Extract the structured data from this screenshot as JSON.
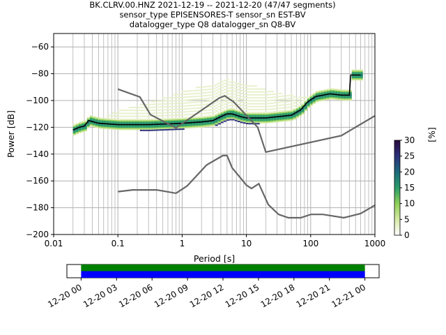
{
  "title": {
    "line1": "BK.CLRV.00.HNZ   2021-12-19 -- 2021-12-20  (47/47 segments)",
    "line2": "sensor_type EPISENSORES-T sensor_sn EST-BV",
    "line3": "datalogger_type Q8 datalogger_sn Q8-BV"
  },
  "chart_data": [
    {
      "type": "heatmap",
      "xlabel": "Period [s]",
      "ylabel": "Power [dB]",
      "xscale": "log",
      "xlim": [
        0.01,
        1000
      ],
      "ylim": [
        -200,
        -50
      ],
      "xticks": [
        0.01,
        0.1,
        1,
        10,
        100,
        1000
      ],
      "xtick_labels": [
        "0.01",
        "0.1",
        "1",
        "10",
        "100",
        "1000"
      ],
      "yticks": [
        -200,
        -180,
        -160,
        -140,
        -120,
        -100,
        -80,
        -60
      ],
      "ytick_labels": [
        "−200",
        "−180",
        "−160",
        "−140",
        "−120",
        "−100",
        "−80",
        "−60"
      ],
      "grid": true,
      "colorbar": {
        "label": "[%]",
        "range": [
          0,
          30
        ],
        "ticks": [
          0,
          5,
          10,
          15,
          20,
          25,
          30
        ],
        "tick_labels": [
          "0",
          "5",
          "10",
          "15",
          "20",
          "25",
          "30"
        ],
        "colormap": [
          "#ffffff",
          "#d6eaa6",
          "#8ecf57",
          "#2a9b6a",
          "#1c6a7c",
          "#2b2f7a",
          "#2a0b3d"
        ]
      },
      "lines": [
        {
          "role": "mode",
          "color": "#000000",
          "x": [
            0.02,
            0.025,
            0.03,
            0.035,
            0.05,
            0.1,
            0.3,
            1,
            2,
            3,
            4,
            5,
            6,
            8,
            10,
            20,
            50,
            70,
            90,
            120,
            200,
            300,
            400,
            420,
            500,
            600
          ],
          "y": [
            -122,
            -120,
            -119,
            -115,
            -117,
            -118,
            -118,
            -117,
            -116,
            -115,
            -112,
            -110,
            -110,
            -112,
            -113,
            -113,
            -111,
            -107,
            -101,
            -97,
            -95,
            -96,
            -96,
            -81,
            -81,
            -81
          ]
        },
        {
          "role": "model",
          "color": "#666666",
          "x": [
            0.1,
            0.22,
            0.32,
            0.8,
            3.8,
            4.6,
            6.3,
            15,
            20,
            300,
            1000
          ],
          "y": [
            -91.5,
            -97.4,
            -110.5,
            -120.4,
            -98.0,
            -96.5,
            -101.0,
            -120.0,
            -138.5,
            -126.2,
            -111.4
          ]
        },
        {
          "role": "model",
          "color": "#666666",
          "x": [
            0.1,
            0.17,
            0.4,
            0.8,
            1.2,
            2.4,
            4.3,
            5,
            6,
            10,
            12,
            15.6,
            21.9,
            31.6,
            45,
            70,
            101,
            154,
            328,
            600,
            1000
          ],
          "y": [
            -168,
            -166.7,
            -166.7,
            -169.2,
            -163.7,
            -148.1,
            -141.1,
            -141.1,
            -150.2,
            -163.2,
            -165.7,
            -162.1,
            -177.7,
            -185,
            -187.5,
            -187.5,
            -185,
            -185,
            -187.5,
            -184.4,
            -178.2
          ]
        }
      ],
      "series": [
        {
          "name": "",
          "x": [
            0.02,
            0.025,
            0.03,
            0.035,
            0.05,
            0.1,
            0.3,
            1,
            2,
            3,
            4,
            5,
            6,
            8,
            10,
            20,
            50,
            70,
            90,
            120,
            200,
            300,
            400,
            420,
            500,
            600
          ],
          "spread": 3
        }
      ],
      "secondary": {
        "role": "upper-envelope",
        "color": "#dbe8b4",
        "x": [
          0.02,
          0.05,
          0.1,
          0.3,
          1,
          2,
          5,
          10,
          20,
          50,
          100,
          200,
          400
        ],
        "y": [
          -118,
          -114,
          -107,
          -101,
          -93,
          -89,
          -84,
          -87,
          -92,
          -96,
          -97,
          -96,
          -97
        ]
      }
    },
    {
      "type": "bar",
      "role": "data-availability",
      "xlabel": "",
      "xlim_hours": [
        0,
        24
      ],
      "tick_labels": [
        "12-20 00",
        "12-20 03",
        "12-20 06",
        "12-20 09",
        "12-20 12",
        "12-20 15",
        "12-20 18",
        "12-20 21",
        "12-21 00"
      ],
      "tick_hours": [
        0,
        3,
        6,
        9,
        12,
        15,
        18,
        21,
        24
      ],
      "bar_range_hours": [
        -1.2,
        25.2
      ],
      "coverage_hours": [
        0,
        24
      ],
      "colors": {
        "top": "#008000",
        "bottom": "#0000ff"
      }
    }
  ]
}
